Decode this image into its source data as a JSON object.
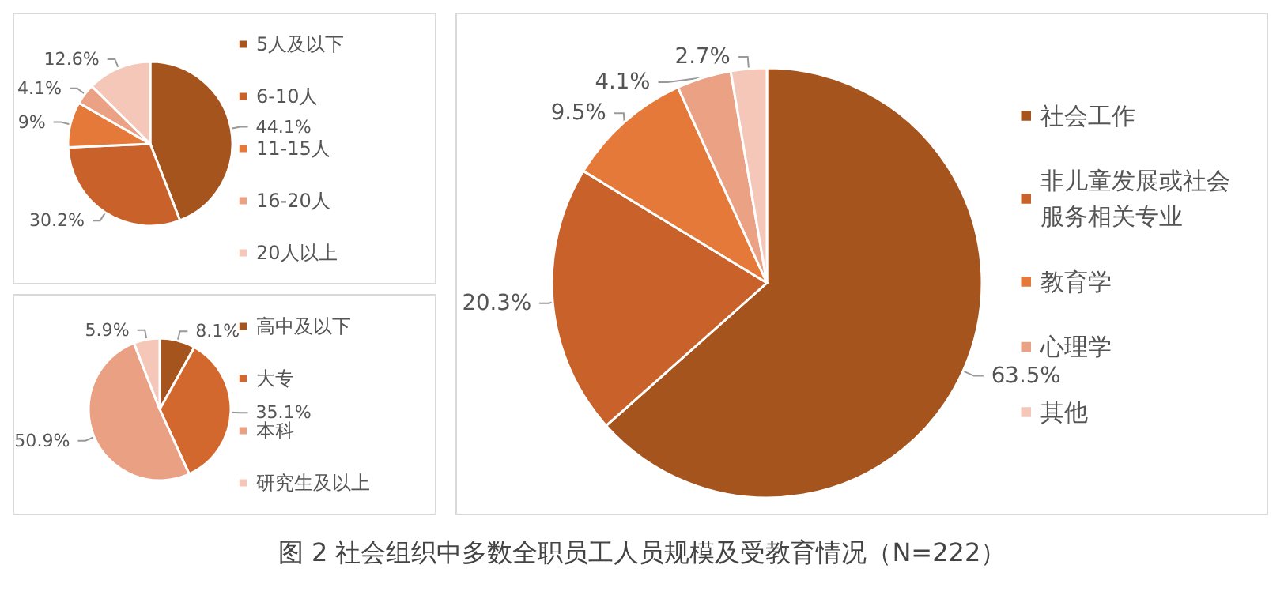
{
  "chart_data": [
    {
      "type": "pie",
      "categories": [
        "5人及以下",
        "6-10人",
        "11-15人",
        "16-20人",
        "20人以上"
      ],
      "values": [
        44.1,
        30.2,
        9,
        4.1,
        12.6
      ],
      "value_labels": [
        "44.1%",
        "30.2%",
        "9%",
        "4.1%",
        "12.6%"
      ],
      "colors": [
        "#a5541e",
        "#c8622a",
        "#e4793a",
        "#eaa184",
        "#f4c7b8"
      ],
      "legend": "right"
    },
    {
      "type": "pie",
      "categories": [
        "高中及以下",
        "大专",
        "本科",
        "研究生及以上"
      ],
      "values": [
        8.1,
        35.1,
        50.9,
        5.9
      ],
      "value_labels": [
        "8.1%",
        "35.1%",
        "50.9%",
        "5.9%"
      ],
      "colors": [
        "#a5541e",
        "#d2682d",
        "#e9a083",
        "#f4c7b8"
      ],
      "legend": "right"
    },
    {
      "type": "pie",
      "categories": [
        "社会工作",
        "非儿童发展或社会服务相关专业",
        "教育学",
        "心理学",
        "其他"
      ],
      "values": [
        63.5,
        20.3,
        9.5,
        4.1,
        2.7
      ],
      "value_labels": [
        "63.5%",
        "20.3%",
        "9.5%",
        "4.1%",
        "2.7%"
      ],
      "colors": [
        "#a5541e",
        "#c8622a",
        "#e4793a",
        "#eaa184",
        "#f4c7b8"
      ],
      "legend": "right",
      "annotations": [
        "图 2 社会组织中多数全职员工人员规模及受教育情况（N=222）"
      ]
    }
  ]
}
